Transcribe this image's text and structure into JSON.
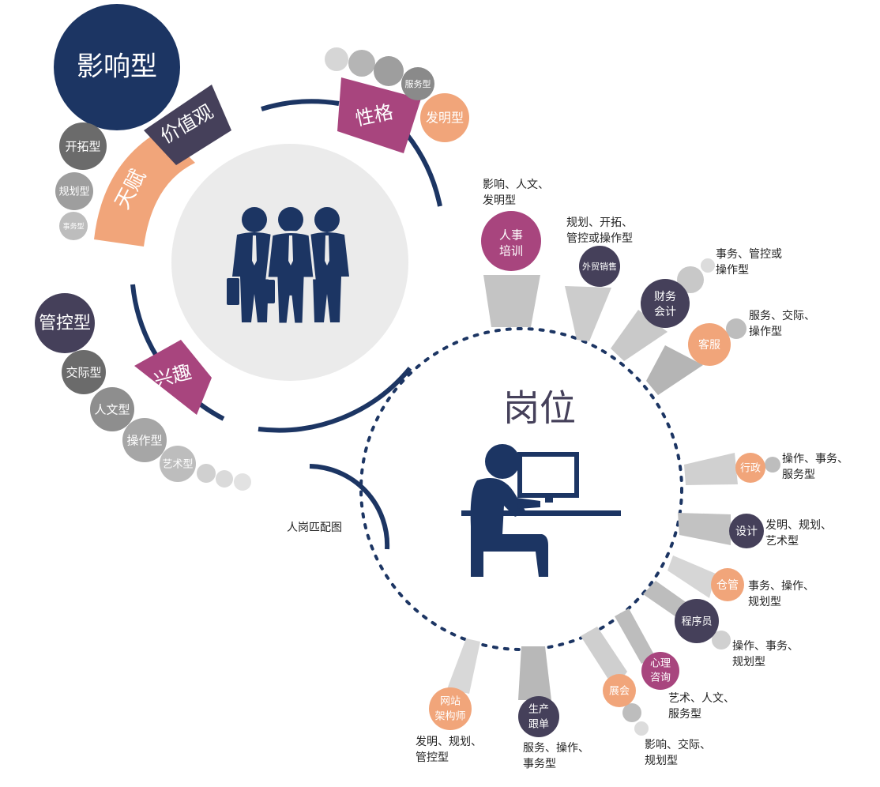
{
  "colors": {
    "navy": "#1c3563",
    "dark": "#45405a",
    "magenta": "#a8457e",
    "orange": "#f1a57a",
    "gray": "#6b6b6b",
    "midgray": "#9e9e9e",
    "lightgray": "#d0d0d0",
    "circlebg": "#ebebeb"
  },
  "person": {
    "factors": {
      "talent": "天赋",
      "values": "价值观",
      "personality": "性格",
      "interest": "兴趣"
    },
    "types": {
      "influence": "影响型",
      "explore": "开拓型",
      "plan": "规划型",
      "affairs": "事务型",
      "service": "服务型",
      "invent": "发明型",
      "control": "管控型",
      "social": "交际型",
      "humanities": "人文型",
      "operate": "操作型",
      "art": "艺术型"
    }
  },
  "matching_label": "人岗匹配图",
  "positions": {
    "title": "岗位",
    "items": [
      {
        "name_lines": [
          "人事",
          "培训"
        ],
        "types_lines": [
          "影响、人文、",
          "发明型"
        ]
      },
      {
        "name_lines": [
          "外贸销售"
        ],
        "types_lines": [
          "规划、开拓、",
          "管控或操作型"
        ]
      },
      {
        "name_lines": [
          "财务",
          "会计"
        ],
        "types_lines": [
          "事务、管控或",
          "操作型"
        ]
      },
      {
        "name_lines": [
          "客服"
        ],
        "types_lines": [
          "服务、交际、",
          "操作型"
        ]
      },
      {
        "name_lines": [
          "行政"
        ],
        "types_lines": [
          "操作、事务、",
          "服务型"
        ]
      },
      {
        "name_lines": [
          "设计"
        ],
        "types_lines": [
          "发明、规划、",
          "艺术型"
        ]
      },
      {
        "name_lines": [
          "仓管"
        ],
        "types_lines": [
          "事务、操作、",
          "规划型"
        ]
      },
      {
        "name_lines": [
          "程序员"
        ],
        "types_lines": [
          "操作、事务、",
          "规划型"
        ]
      },
      {
        "name_lines": [
          "心理",
          "咨询"
        ],
        "types_lines": [
          "艺术、人文、",
          "服务型"
        ]
      },
      {
        "name_lines": [
          "展会"
        ],
        "types_lines": [
          "影响、交际、",
          "规划型"
        ]
      },
      {
        "name_lines": [
          "生产",
          "跟单"
        ],
        "types_lines": [
          "服务、操作、",
          "事务型"
        ]
      },
      {
        "name_lines": [
          "网站",
          "架构师"
        ],
        "types_lines": [
          "发明、规划、",
          "管控型"
        ]
      }
    ]
  }
}
